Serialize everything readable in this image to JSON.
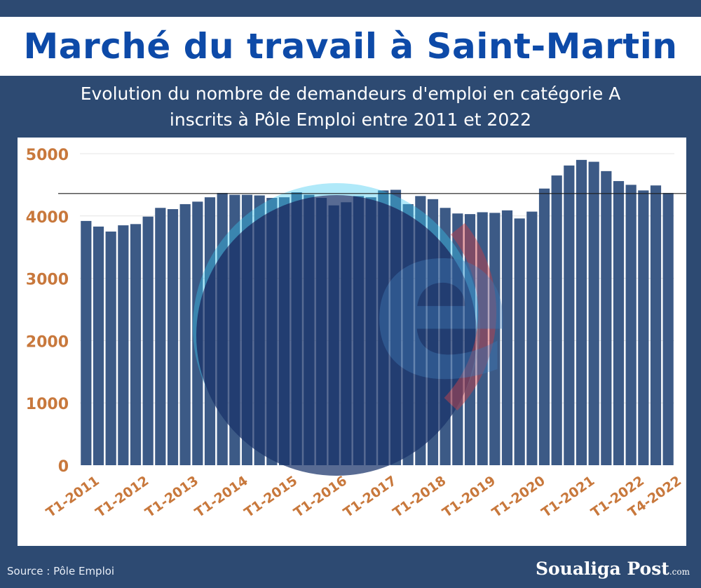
{
  "header": {
    "title": "Marché du travail à Saint-Martin",
    "subtitle_line1": "Evolution du nombre de demandeurs d'emploi en catégorie A",
    "subtitle_line2": "inscrits à Pôle Emploi entre 2011 et 2022"
  },
  "footer": {
    "source": "Source : Pôle Emploi",
    "brand": "Soualiga Post",
    "brand_suffix": ".com"
  },
  "colors": {
    "background": "#2d4a72",
    "bar": "#3c5a86",
    "title": "#0d4aa8",
    "tick_label": "#c8783c",
    "gridline": "#e4e4e4"
  },
  "logo": {
    "name": "pole-emploi-logo-watermark",
    "text": "e"
  },
  "chart_data": {
    "type": "bar",
    "title": "",
    "xlabel": "",
    "ylabel": "",
    "ylim": [
      0,
      5000
    ],
    "yticks": [
      0,
      1000,
      2000,
      3000,
      4000,
      5000
    ],
    "grid": true,
    "reference_line": 4360,
    "x_tick_labels": [
      "T1-2011",
      "T1-2012",
      "T1-2013",
      "T1-2014",
      "T1-2015",
      "T1-2016",
      "T1-2017",
      "T1-2018",
      "T1-2019",
      "T1-2020",
      "T1-2021",
      "T1-2022",
      "T4-2022"
    ],
    "categories": [
      "T1-2011",
      "T2-2011",
      "T3-2011",
      "T4-2011",
      "T1-2012",
      "T2-2012",
      "T3-2012",
      "T4-2012",
      "T1-2013",
      "T2-2013",
      "T3-2013",
      "T4-2013",
      "T1-2014",
      "T2-2014",
      "T3-2014",
      "T4-2014",
      "T1-2015",
      "T2-2015",
      "T3-2015",
      "T4-2015",
      "T1-2016",
      "T2-2016",
      "T3-2016",
      "T4-2016",
      "T1-2017",
      "T2-2017",
      "T3-2017",
      "T4-2017",
      "T1-2018",
      "T2-2018",
      "T3-2018",
      "T4-2018",
      "T1-2019",
      "T2-2019",
      "T3-2019",
      "T4-2019",
      "T1-2020",
      "T2-2020",
      "T3-2020",
      "T4-2020",
      "T1-2021",
      "T2-2021",
      "T3-2021",
      "T4-2021",
      "T1-2022",
      "T2-2022",
      "T3-2022",
      "T4-2022"
    ],
    "values": [
      3920,
      3830,
      3750,
      3850,
      3870,
      3990,
      4130,
      4110,
      4190,
      4230,
      4300,
      4370,
      4340,
      4340,
      4330,
      4290,
      4300,
      4380,
      4340,
      4290,
      4170,
      4220,
      4320,
      4300,
      4410,
      4420,
      4190,
      4320,
      4270,
      4130,
      4040,
      4030,
      4060,
      4050,
      4090,
      3960,
      4070,
      4440,
      4650,
      4810,
      4900,
      4870,
      4720,
      4560,
      4500,
      4410,
      4490,
      4370
    ]
  }
}
